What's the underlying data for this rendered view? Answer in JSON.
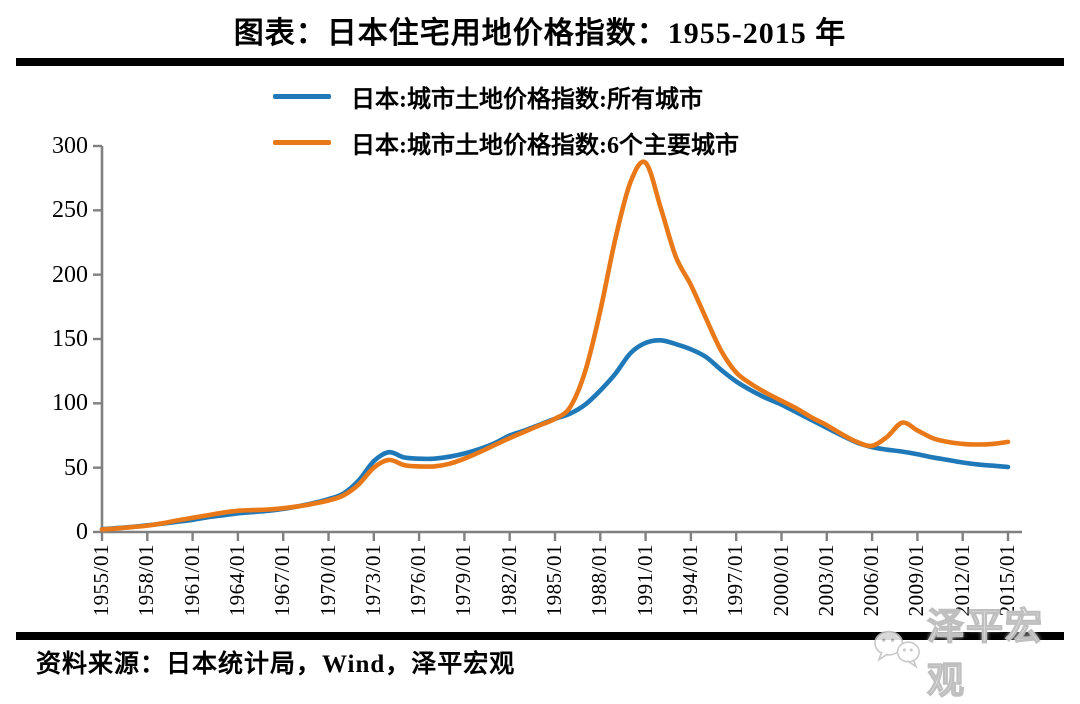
{
  "title": "图表：日本住宅用地价格指数：1955-2015 年",
  "legend": [
    {
      "label": "日本:城市土地价格指数:所有城市",
      "color": "#1f78b8"
    },
    {
      "label": "日本:城市土地价格指数:6个主要城市",
      "color": "#e87818"
    }
  ],
  "source": "资料来源：日本统计局，Wind，泽平宏观",
  "watermark": "泽平宏观",
  "chart_data": {
    "type": "line",
    "title": "图表：日本住宅用地价格指数：1955-2015 年",
    "xlabel": "",
    "ylabel": "",
    "ylim": [
      0,
      300
    ],
    "yticks": [
      0,
      50,
      100,
      150,
      200,
      250,
      300
    ],
    "grid": false,
    "legend_position": "top-center",
    "axis_color": "#808080",
    "x_tick_labels": [
      "1955/01",
      "1958/01",
      "1961/01",
      "1964/01",
      "1967/01",
      "1970/01",
      "1973/01",
      "1976/01",
      "1979/01",
      "1982/01",
      "1985/01",
      "1988/01",
      "1991/01",
      "1994/01",
      "1997/01",
      "2000/01",
      "2003/01",
      "2006/01",
      "2009/01",
      "2012/01",
      "2015/01"
    ],
    "x": [
      1955,
      1956,
      1957,
      1958,
      1959,
      1960,
      1961,
      1962,
      1963,
      1964,
      1965,
      1966,
      1967,
      1968,
      1969,
      1970,
      1971,
      1972,
      1973,
      1974,
      1975,
      1976,
      1977,
      1978,
      1979,
      1980,
      1981,
      1982,
      1983,
      1984,
      1985,
      1986,
      1987,
      1988,
      1989,
      1990,
      1991,
      1992,
      1993,
      1994,
      1995,
      1996,
      1997,
      1998,
      1999,
      2000,
      2001,
      2002,
      2003,
      2004,
      2005,
      2006,
      2007,
      2008,
      2009,
      2010,
      2011,
      2012,
      2013,
      2014,
      2015
    ],
    "series": [
      {
        "name": "日本:城市土地价格指数:所有城市",
        "color": "#1f78b8",
        "values": [
          2.2,
          3.0,
          4.0,
          5.2,
          6.5,
          8.0,
          9.5,
          11.5,
          13.0,
          14.5,
          15.5,
          16.5,
          18.0,
          20.0,
          22.5,
          25.5,
          30.0,
          40.0,
          55.0,
          62.0,
          58.0,
          57.0,
          57.0,
          58.5,
          61.0,
          64.5,
          69.0,
          75.0,
          79.0,
          83.5,
          88.0,
          92.0,
          99.0,
          110.0,
          123.0,
          139.0,
          147.0,
          149.0,
          146.0,
          142.0,
          136.0,
          126.0,
          117.0,
          110.0,
          104.0,
          99.0,
          93.0,
          87.0,
          81.0,
          75.0,
          69.5,
          66.0,
          64.0,
          62.5,
          60.5,
          58.0,
          56.0,
          54.0,
          52.5,
          51.5,
          50.5
        ]
      },
      {
        "name": "日本:城市土地价格指数:6个主要城市",
        "color": "#e87818",
        "values": [
          2.0,
          2.8,
          3.8,
          5.0,
          6.8,
          9.0,
          11.0,
          13.0,
          15.0,
          16.5,
          17.0,
          17.5,
          18.5,
          20.0,
          22.0,
          24.5,
          28.5,
          37.0,
          50.0,
          56.0,
          52.0,
          51.0,
          51.0,
          53.0,
          57.0,
          62.0,
          67.5,
          73.0,
          78.0,
          83.0,
          88.0,
          97.0,
          125.0,
          172.0,
          228.0,
          272.0,
          287.0,
          252.0,
          214.0,
          192.0,
          166.0,
          141.0,
          124.0,
          115.0,
          108.0,
          102.0,
          96.0,
          89.0,
          83.0,
          76.0,
          70.0,
          67.0,
          74.0,
          85.0,
          79.0,
          73.0,
          70.0,
          68.5,
          68.0,
          68.5,
          70.0
        ]
      }
    ]
  }
}
